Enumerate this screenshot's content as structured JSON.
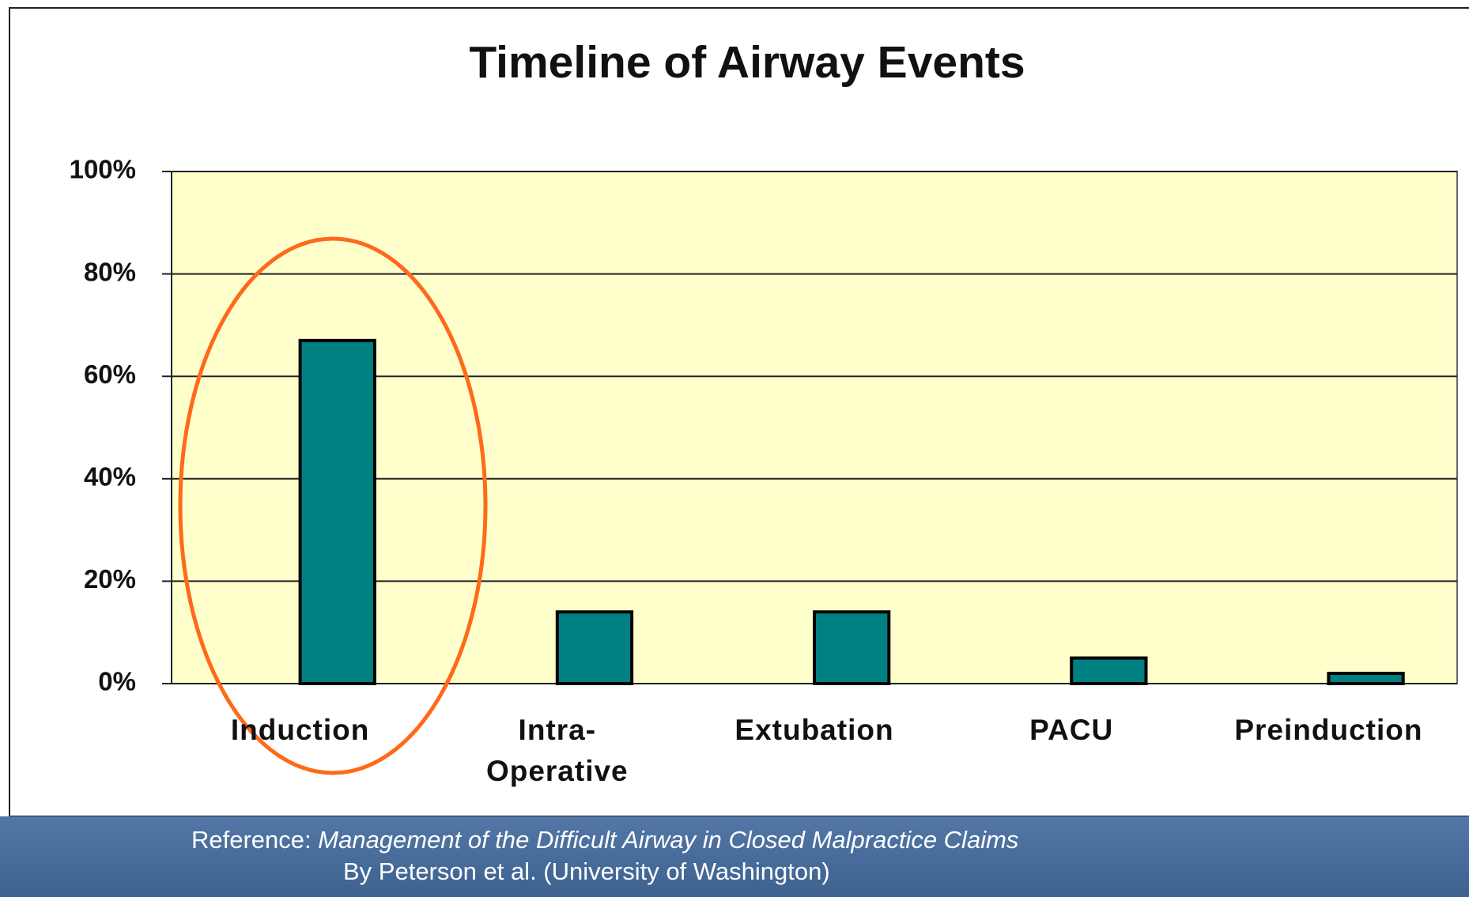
{
  "chart_data": {
    "type": "bar",
    "title": "Timeline of Airway Events",
    "categories": [
      "Induction",
      "Intra-Operative",
      "Extubation",
      "PACU",
      "Preinduction"
    ],
    "values": [
      67,
      14,
      14,
      5,
      2
    ],
    "color": "#008080",
    "ylim": [
      0,
      100
    ],
    "yticks": [
      {
        "value": 0,
        "label": "0%"
      },
      {
        "value": 20,
        "label": "20%"
      },
      {
        "value": 40,
        "label": "40%"
      },
      {
        "value": 60,
        "label": "60%"
      },
      {
        "value": 80,
        "label": "80%"
      },
      {
        "value": 100,
        "label": "100%"
      }
    ],
    "grid": true
  },
  "footer": {
    "prefix": "Reference:",
    "source": "Management of the Difficult Airway in Closed Malpractice Claims",
    "authors": "By Peterson et al. (University of Washington)"
  }
}
